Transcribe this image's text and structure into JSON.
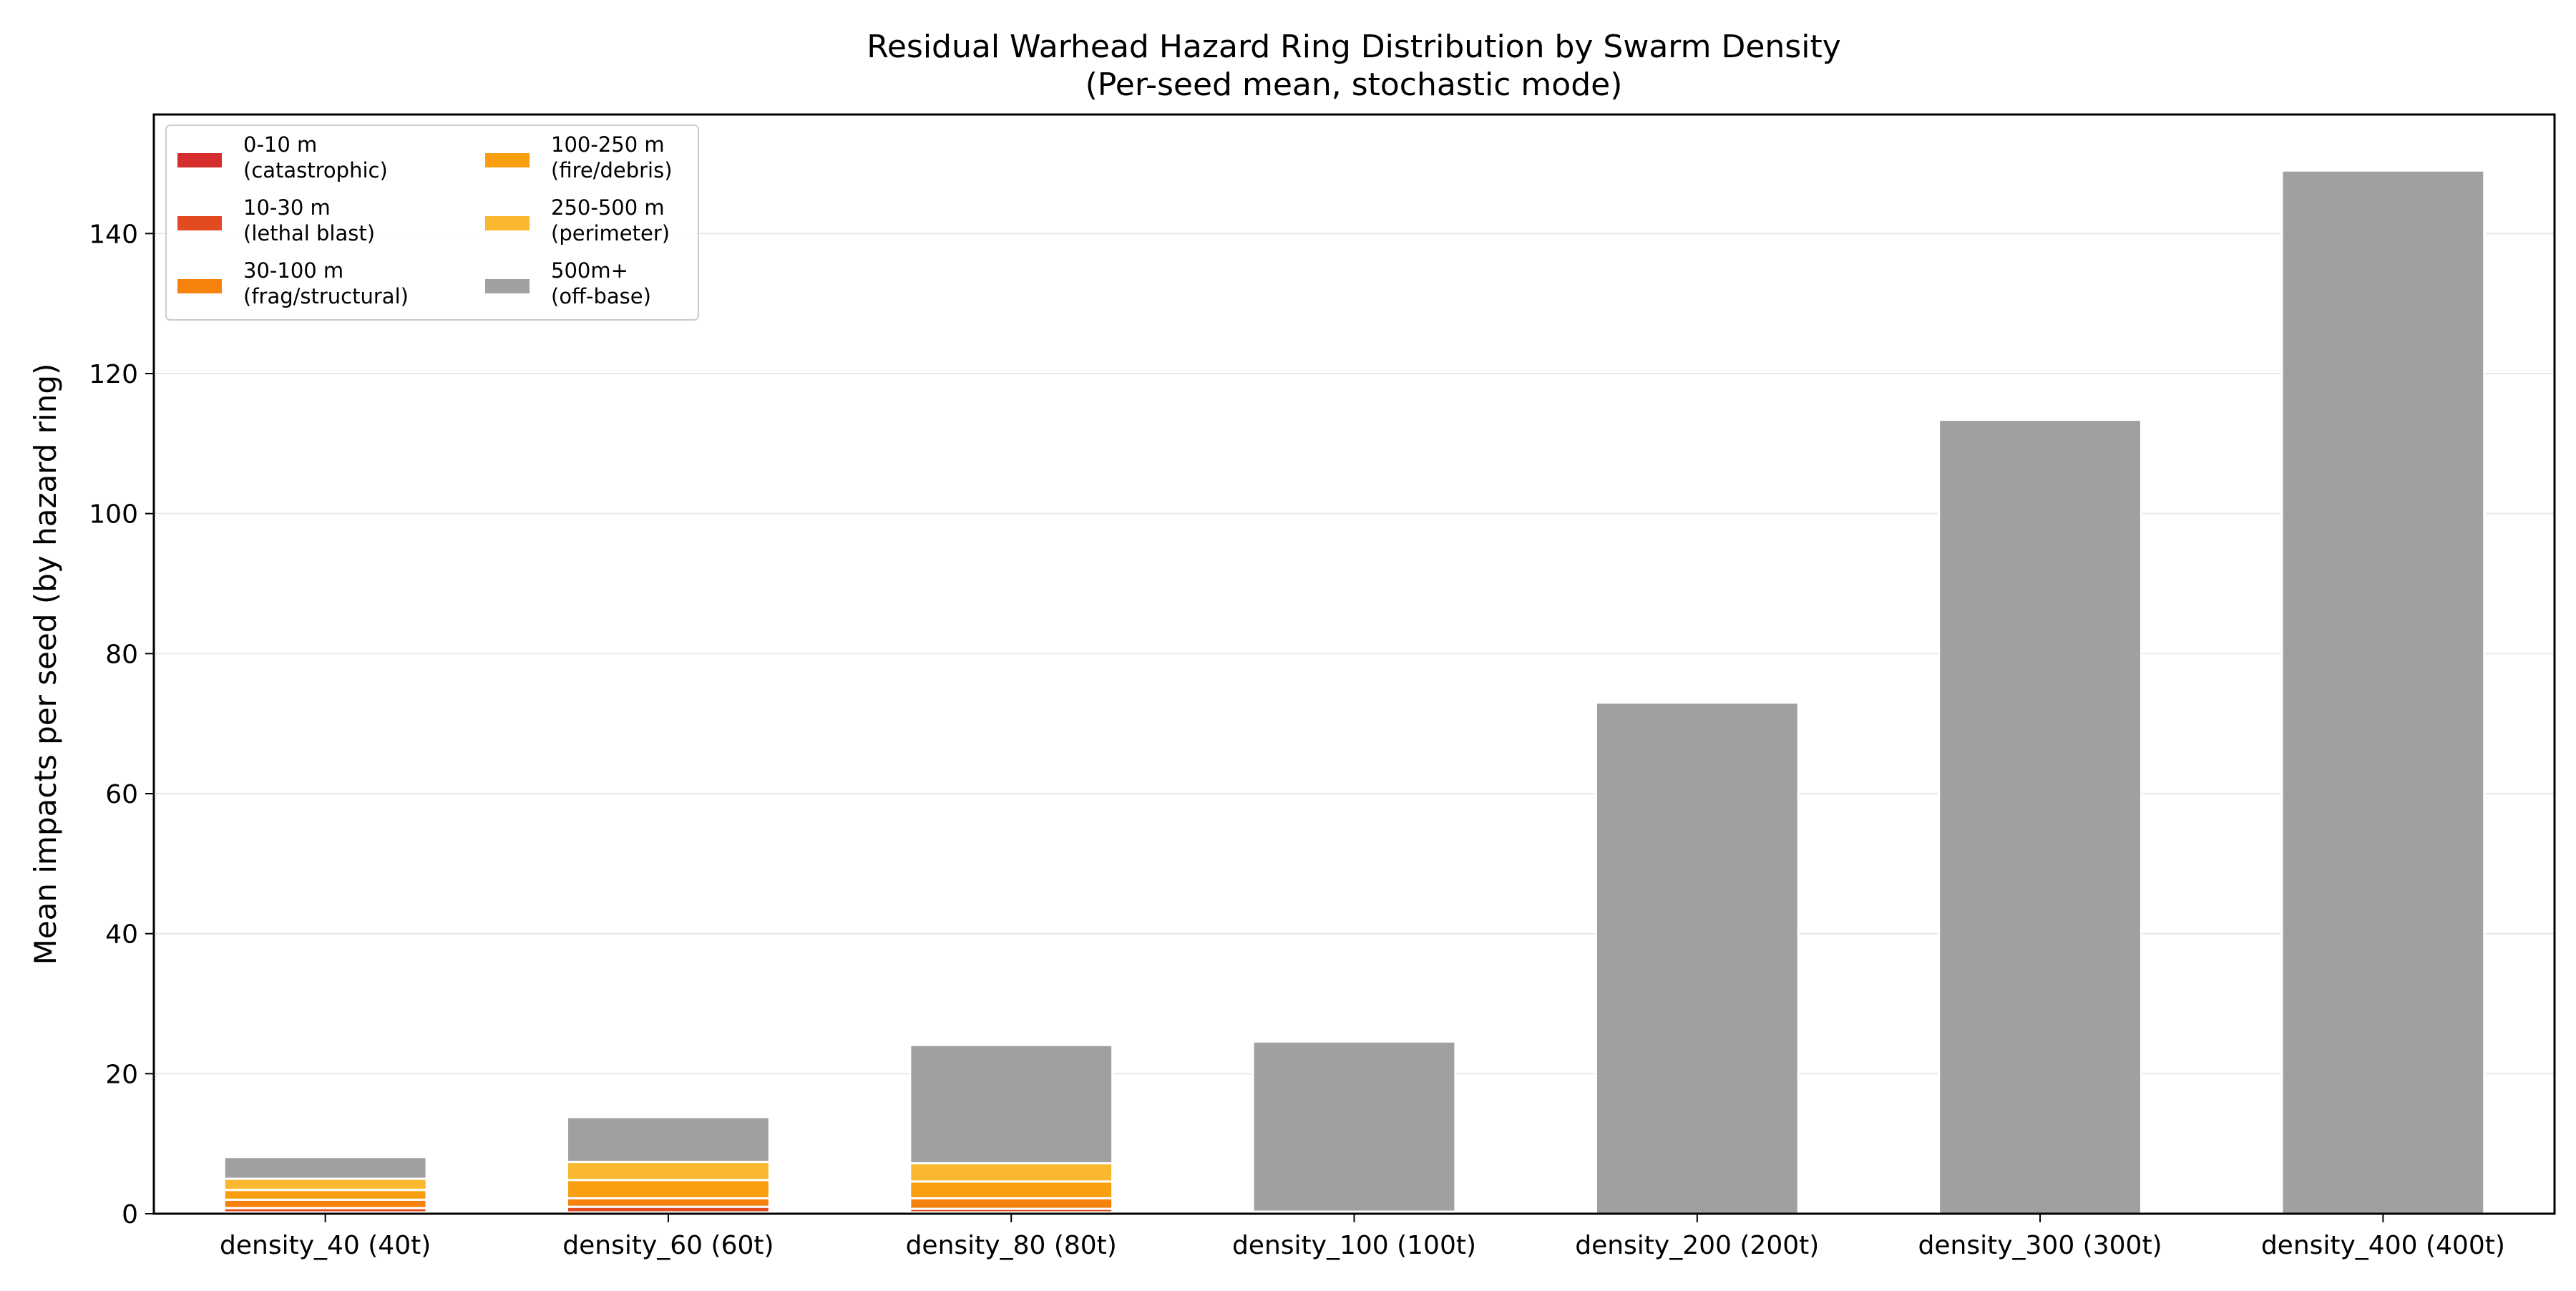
{
  "chart_data": {
    "type": "bar",
    "stacked": true,
    "title": "Residual Warhead Hazard Ring Distribution by Swarm Density",
    "subtitle": "(Per-seed mean, stochastic mode)",
    "xlabel": "",
    "ylabel": "Mean impacts per seed (by hazard ring)",
    "ylim": [
      0,
      157
    ],
    "yticks": [
      0,
      20,
      40,
      60,
      80,
      100,
      120,
      140
    ],
    "grid": "horizontal",
    "legend_position": "top-left",
    "categories": [
      "density_40 (40t)",
      "density_60 (60t)",
      "density_80 (80t)",
      "density_100 (100t)",
      "density_200 (200t)",
      "density_300 (300t)",
      "density_400 (400t)"
    ],
    "series": [
      {
        "name": "0-10 m\n(catastrophic)",
        "color": "#d62d2d",
        "values": [
          0.2,
          0.2,
          0.2,
          0.0,
          0.0,
          0.0,
          0.0
        ]
      },
      {
        "name": "10-30 m\n(lethal blast)",
        "color": "#e24a1f",
        "values": [
          0.6,
          0.8,
          0.5,
          0.0,
          0.0,
          0.0,
          0.0
        ]
      },
      {
        "name": "30-100 m\n(frag/structural)",
        "color": "#f5820d",
        "values": [
          1.2,
          1.2,
          1.5,
          0.0,
          0.0,
          0.0,
          0.0
        ]
      },
      {
        "name": "100-250 m\n(fire/debris)",
        "color": "#f89e0f",
        "values": [
          1.4,
          2.6,
          2.4,
          0.0,
          0.0,
          0.0,
          0.0
        ]
      },
      {
        "name": "250-500 m\n(perimeter)",
        "color": "#f9b82f",
        "values": [
          1.6,
          2.6,
          2.6,
          0.3,
          0.0,
          0.0,
          0.0
        ]
      },
      {
        "name": "500m+\n(off-base)",
        "color": "#a0a0a0",
        "values": [
          3.1,
          6.4,
          16.9,
          24.3,
          73.0,
          113.4,
          149.0
        ]
      }
    ]
  }
}
